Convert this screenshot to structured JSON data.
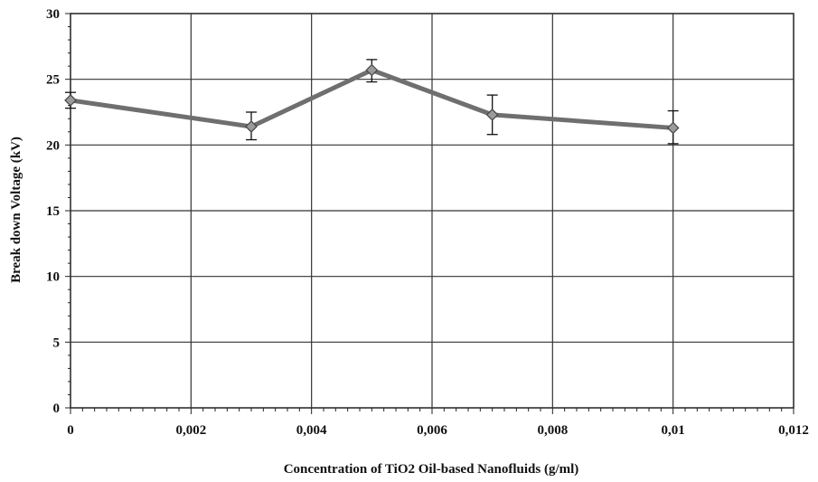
{
  "chart_data": {
    "type": "line",
    "title": "",
    "xlabel": "Concentration of TiO2 Oil-based Nanofluids (g/ml)",
    "ylabel": "Break down Voltage (kV)",
    "xlim": [
      0,
      0.012
    ],
    "ylim": [
      0,
      30
    ],
    "x_ticks": [
      {
        "value": 0,
        "label": "0"
      },
      {
        "value": 0.002,
        "label": "0,002"
      },
      {
        "value": 0.004,
        "label": "0,004"
      },
      {
        "value": 0.006,
        "label": "0,006"
      },
      {
        "value": 0.008,
        "label": "0,008"
      },
      {
        "value": 0.01,
        "label": "0,01"
      },
      {
        "value": 0.012,
        "label": "0,012"
      }
    ],
    "y_ticks": [
      {
        "value": 0,
        "label": "0"
      },
      {
        "value": 5,
        "label": "5"
      },
      {
        "value": 10,
        "label": "10"
      },
      {
        "value": 15,
        "label": "15"
      },
      {
        "value": 20,
        "label": "20"
      },
      {
        "value": 25,
        "label": "25"
      },
      {
        "value": 30,
        "label": "30"
      }
    ],
    "grid": true,
    "legend": "none",
    "series": [
      {
        "color": "#6f6f6f",
        "marker": "diamond",
        "x": [
          0,
          0.003,
          0.005,
          0.007,
          0.01
        ],
        "values": [
          23.4,
          21.4,
          25.7,
          22.3,
          21.3
        ],
        "error_low": [
          22.8,
          20.4,
          24.8,
          20.8,
          20.1
        ],
        "error_high": [
          24.0,
          22.5,
          26.5,
          23.8,
          22.6
        ]
      }
    ]
  }
}
